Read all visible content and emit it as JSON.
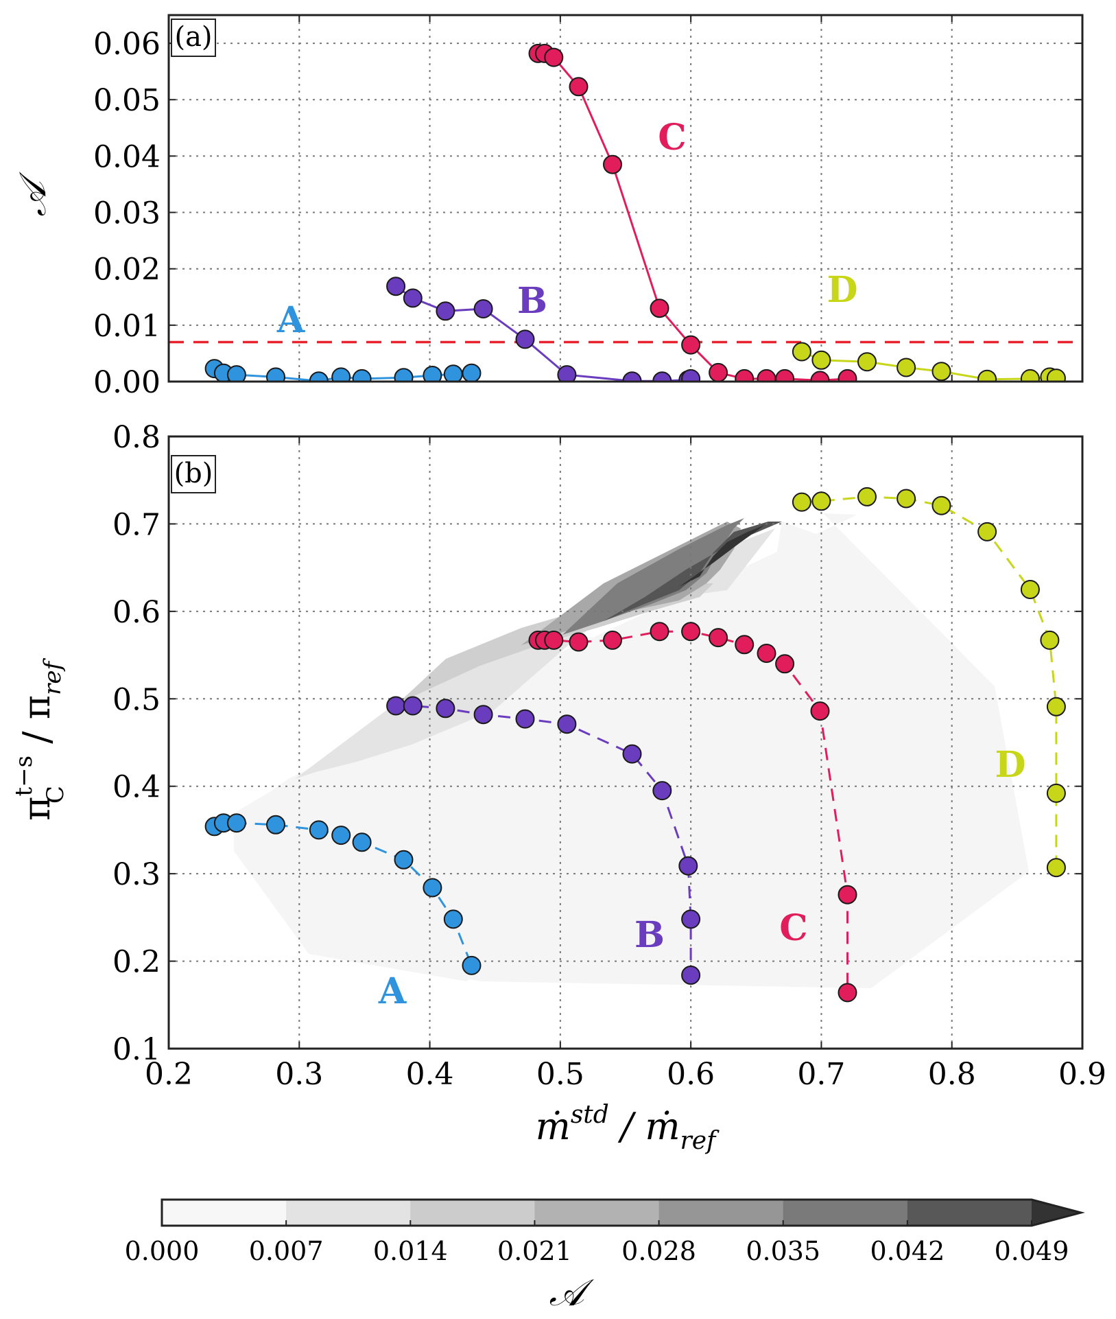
{
  "chart_data": [
    {
      "panel": "(a)",
      "type": "line",
      "xlabel": "ṁ^std / ṁ_ref",
      "ylabel": "𝒜",
      "xlim": [
        0.2,
        0.9
      ],
      "ylim": [
        0.0,
        0.065
      ],
      "xticks": [
        "0.2",
        "0.3",
        "0.4",
        "0.5",
        "0.6",
        "0.7",
        "0.8",
        "0.9"
      ],
      "yticks": [
        "0.00",
        "0.01",
        "0.02",
        "0.03",
        "0.04",
        "0.05",
        "0.06"
      ],
      "grid": true,
      "threshold": {
        "value": 0.007,
        "color": "#e8232e",
        "style": "dashed"
      },
      "series": [
        {
          "name": "A",
          "color": "#2f93dd",
          "x": [
            0.235,
            0.242,
            0.252,
            0.282,
            0.315,
            0.332,
            0.348,
            0.38,
            0.402,
            0.418,
            0.432
          ],
          "y": [
            0.0023,
            0.0015,
            0.0012,
            0.0008,
            0.0001,
            0.0008,
            0.0005,
            0.0007,
            0.0011,
            0.0013,
            0.0015
          ]
        },
        {
          "name": "B",
          "color": "#6a3dbf",
          "x": [
            0.374,
            0.387,
            0.412,
            0.441,
            0.473,
            0.505,
            0.555,
            0.578,
            0.598,
            0.6
          ],
          "y": [
            0.0169,
            0.0148,
            0.0125,
            0.0129,
            0.0075,
            0.0012,
            0.0001,
            0.0001,
            0.0003,
            0.0005
          ]
        },
        {
          "name": "C",
          "color": "#e11d5c",
          "x": [
            0.483,
            0.488,
            0.495,
            0.514,
            0.54,
            0.576,
            0.6,
            0.621,
            0.641,
            0.658,
            0.672,
            0.699,
            0.72
          ],
          "y": [
            0.0582,
            0.0582,
            0.0575,
            0.0523,
            0.0385,
            0.013,
            0.0065,
            0.0016,
            0.0005,
            0.0005,
            0.0005,
            0.0002,
            0.0005
          ]
        },
        {
          "name": "D",
          "color": "#c8d61a",
          "x": [
            0.685,
            0.7,
            0.735,
            0.765,
            0.792,
            0.827,
            0.86,
            0.875,
            0.88
          ],
          "y": [
            0.0053,
            0.0038,
            0.0035,
            0.0025,
            0.0018,
            0.0004,
            0.0005,
            0.0008,
            0.0006
          ]
        }
      ]
    },
    {
      "panel": "(b)",
      "type": "line",
      "xlabel": "ṁ^std / ṁ_ref",
      "ylabel": "π_C^{t−s} / π_ref",
      "xlim": [
        0.2,
        0.9
      ],
      "ylim": [
        0.1,
        0.8
      ],
      "xticks": [
        "0.2",
        "0.3",
        "0.4",
        "0.5",
        "0.6",
        "0.7",
        "0.8",
        "0.9"
      ],
      "yticks": [
        "0.1",
        "0.2",
        "0.3",
        "0.4",
        "0.5",
        "0.6",
        "0.7",
        "0.8"
      ],
      "grid": true,
      "contour_field": "𝒜",
      "series": [
        {
          "name": "A",
          "color": "#2f93dd",
          "x": [
            0.235,
            0.242,
            0.252,
            0.282,
            0.315,
            0.332,
            0.348,
            0.38,
            0.402,
            0.418,
            0.432
          ],
          "y": [
            0.354,
            0.358,
            0.358,
            0.356,
            0.35,
            0.344,
            0.336,
            0.316,
            0.284,
            0.248,
            0.195
          ]
        },
        {
          "name": "B",
          "color": "#6a3dbf",
          "x": [
            0.374,
            0.387,
            0.412,
            0.441,
            0.473,
            0.505,
            0.555,
            0.578,
            0.598,
            0.6,
            0.6
          ],
          "y": [
            0.492,
            0.492,
            0.489,
            0.482,
            0.477,
            0.471,
            0.437,
            0.395,
            0.309,
            0.248,
            0.184
          ]
        },
        {
          "name": "C",
          "color": "#e11d5c",
          "x": [
            0.483,
            0.488,
            0.495,
            0.514,
            0.54,
            0.576,
            0.6,
            0.621,
            0.641,
            0.658,
            0.672,
            0.699,
            0.72,
            0.72
          ],
          "y": [
            0.567,
            0.567,
            0.567,
            0.565,
            0.567,
            0.577,
            0.577,
            0.57,
            0.562,
            0.552,
            0.54,
            0.486,
            0.276,
            0.164
          ]
        },
        {
          "name": "D",
          "color": "#c8d61a",
          "x": [
            0.685,
            0.7,
            0.735,
            0.765,
            0.792,
            0.827,
            0.86,
            0.875,
            0.88,
            0.88,
            0.88
          ],
          "y": [
            0.725,
            0.726,
            0.731,
            0.729,
            0.721,
            0.691,
            0.625,
            0.567,
            0.491,
            0.392,
            0.307
          ]
        }
      ]
    }
  ],
  "colorbar": {
    "label": "𝒜",
    "ticks": [
      "0.000",
      "0.007",
      "0.014",
      "0.021",
      "0.028",
      "0.035",
      "0.042",
      "0.049"
    ],
    "bands": [
      "#f7f7f7",
      "#e3e3e3",
      "#cccccc",
      "#b2b2b2",
      "#969696",
      "#7a7a7a",
      "#585858"
    ],
    "extend_color": "#333333"
  },
  "labels": {
    "panel_a": "(a)",
    "panel_b": "(b)",
    "ylabel_a": "𝒜",
    "xlabel_main": "ṁ",
    "xlabel_sup": "std",
    "xlabel_mid": " / ṁ",
    "xlabel_sub": "ref",
    "ylabel_b_main": "π",
    "ylabel_b_sup": "t−s",
    "ylabel_b_sub": "C",
    "ylabel_b_rest": " / π",
    "ylabel_b_sub2": "ref",
    "curve_A": "A",
    "curve_B": "B",
    "curve_C": "C",
    "curve_D": "D"
  }
}
